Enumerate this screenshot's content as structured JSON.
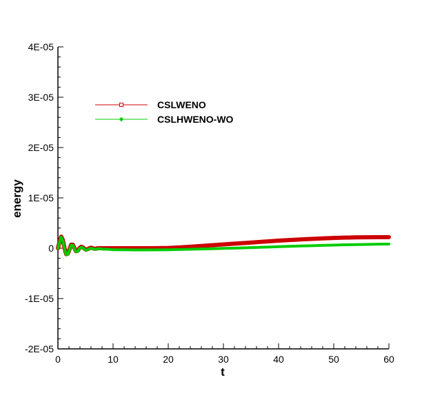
{
  "chart_data": {
    "type": "line",
    "xlabel": "t",
    "ylabel": "energy",
    "xlim": [
      0,
      60
    ],
    "ylim": [
      -2e-05,
      4e-05
    ],
    "x_ticks": [
      0,
      10,
      20,
      30,
      40,
      50,
      60
    ],
    "x_tick_labels": [
      "0",
      "10",
      "20",
      "30",
      "40",
      "50",
      "60"
    ],
    "y_ticks": [
      -2e-05,
      -1e-05,
      0,
      1e-05,
      2e-05,
      3e-05,
      4e-05
    ],
    "y_tick_labels": [
      "-2E-05",
      "-1E-05",
      "0",
      "1E-05",
      "2E-05",
      "3E-05",
      "4E-05"
    ],
    "grid": false,
    "legend_position": "top-left",
    "series": [
      {
        "name": "CSLWENO",
        "color": "#cc0000",
        "marker": "square",
        "x": [
          0,
          0.3,
          0.6,
          0.9,
          1.2,
          1.5,
          1.8,
          2.1,
          2.4,
          2.7,
          3.0,
          3.3,
          3.6,
          3.9,
          4.2,
          4.5,
          4.8,
          5.1,
          5.4,
          5.7,
          6.0,
          6.3,
          6.6,
          6.9,
          7.2,
          7.5,
          7.8,
          8.1,
          8.4,
          8.7,
          9.0,
          10,
          12,
          14,
          16,
          18,
          20,
          22,
          24,
          26,
          28,
          30,
          32,
          34,
          36,
          38,
          40,
          42,
          44,
          46,
          48,
          50,
          52,
          54,
          56,
          58,
          60
        ],
        "y": [
          0,
          1.3e-06,
          2.3e-06,
          1.6e-06,
          0,
          -1.2e-06,
          -1.1e-06,
          -2e-07,
          7e-07,
          7e-07,
          0,
          -6e-07,
          -5e-07,
          0,
          3e-07,
          2e-07,
          -1e-07,
          -3e-07,
          -2e-07,
          0,
          1e-07,
          0,
          -1e-07,
          -1e-07,
          0,
          0,
          0,
          0,
          0,
          0,
          0,
          0,
          0,
          0,
          0,
          1e-08,
          5e-08,
          1.5e-07,
          3e-07,
          4.5e-07,
          6e-07,
          7.5e-07,
          9e-07,
          1.05e-06,
          1.2e-06,
          1.35e-06,
          1.5e-06,
          1.62e-06,
          1.74e-06,
          1.85e-06,
          1.95e-06,
          2.03e-06,
          2.1e-06,
          2.15e-06,
          2.18e-06,
          2.2e-06,
          2.2e-06
        ]
      },
      {
        "name": "CSLHWENO-WO",
        "color": "#00cc00",
        "marker": "diamond",
        "x": [
          0,
          0.3,
          0.6,
          0.9,
          1.2,
          1.5,
          1.8,
          2.1,
          2.4,
          2.7,
          3.0,
          3.3,
          3.6,
          3.9,
          4.2,
          4.5,
          4.8,
          5.1,
          5.4,
          5.7,
          6.0,
          6.3,
          6.6,
          6.9,
          7.2,
          7.5,
          7.8,
          8.1,
          8.4,
          8.7,
          9.0,
          10,
          12,
          14,
          16,
          18,
          20,
          22,
          24,
          26,
          28,
          30,
          32,
          34,
          36,
          38,
          40,
          42,
          44,
          46,
          48,
          50,
          52,
          54,
          56,
          58,
          60
        ],
        "y": [
          0,
          1.2e-06,
          2.2e-06,
          1.5e-06,
          -1e-07,
          -1.3e-06,
          -1.2e-06,
          -3e-07,
          6e-07,
          6e-07,
          -1e-07,
          -7e-07,
          -6e-07,
          -1e-07,
          2e-07,
          1e-07,
          -2e-07,
          -4e-07,
          -3e-07,
          -1e-07,
          0,
          -1e-07,
          -2e-07,
          -2e-07,
          -1e-07,
          -1e-07,
          -1e-07,
          -2e-07,
          -2e-07,
          -2e-07,
          -2e-07,
          -3e-07,
          -3e-07,
          -3.5e-07,
          -3.5e-07,
          -3.3e-07,
          -3e-07,
          -2.6e-07,
          -2.1e-07,
          -1.6e-07,
          -1e-07,
          -4e-08,
          2e-08,
          9e-08,
          1.6e-07,
          2.3e-07,
          3e-07,
          3.7e-07,
          4.4e-07,
          5e-07,
          5.6e-07,
          6.2e-07,
          6.8e-07,
          7.2e-07,
          7.6e-07,
          8e-07,
          8.2e-07
        ]
      }
    ]
  }
}
